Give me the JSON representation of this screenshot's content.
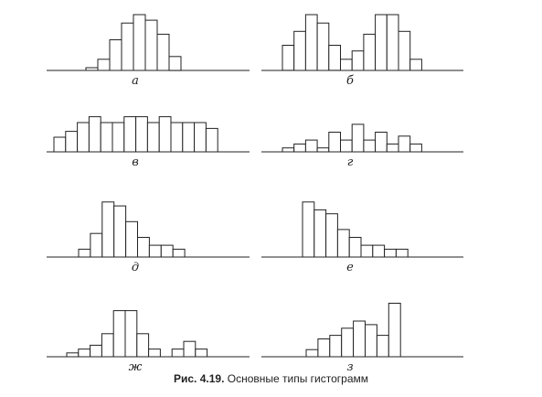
{
  "caption": {
    "number": "Рис. 4.19.",
    "text": "Основные типы гистограмм"
  },
  "colors": {
    "stroke": "#222222",
    "fill": "#ffffff"
  },
  "chart_data": [
    {
      "type": "bar",
      "label": "а",
      "values": [
        1,
        4,
        11,
        17,
        20,
        18,
        13,
        5
      ]
    },
    {
      "type": "bar",
      "label": "б",
      "values": [
        9,
        14,
        20,
        17,
        9,
        4,
        7,
        13,
        20,
        20,
        14,
        4
      ]
    },
    {
      "type": "bar",
      "label": "в",
      "values": [
        5,
        7,
        10,
        12,
        10,
        10,
        12,
        12,
        10,
        12,
        10,
        10,
        10,
        8
      ]
    },
    {
      "type": "bar",
      "label": "г",
      "values": [
        1,
        2,
        3,
        1,
        5,
        3,
        7,
        3,
        5,
        2,
        4,
        2
      ]
    },
    {
      "type": "bar",
      "label": "д",
      "values": [
        2,
        6,
        14,
        13,
        9,
        5,
        3,
        3,
        2
      ]
    },
    {
      "type": "bar",
      "label": "е",
      "values": [
        14,
        12,
        11,
        7,
        5,
        3,
        3,
        2,
        2
      ]
    },
    {
      "type": "bar",
      "label": "ж",
      "values": [
        1,
        2,
        3,
        6,
        12,
        12,
        6,
        2,
        0,
        2,
        4,
        2
      ]
    },
    {
      "type": "bar",
      "label": "з",
      "values": [
        2,
        5,
        6,
        8,
        10,
        9,
        6,
        15
      ]
    }
  ]
}
